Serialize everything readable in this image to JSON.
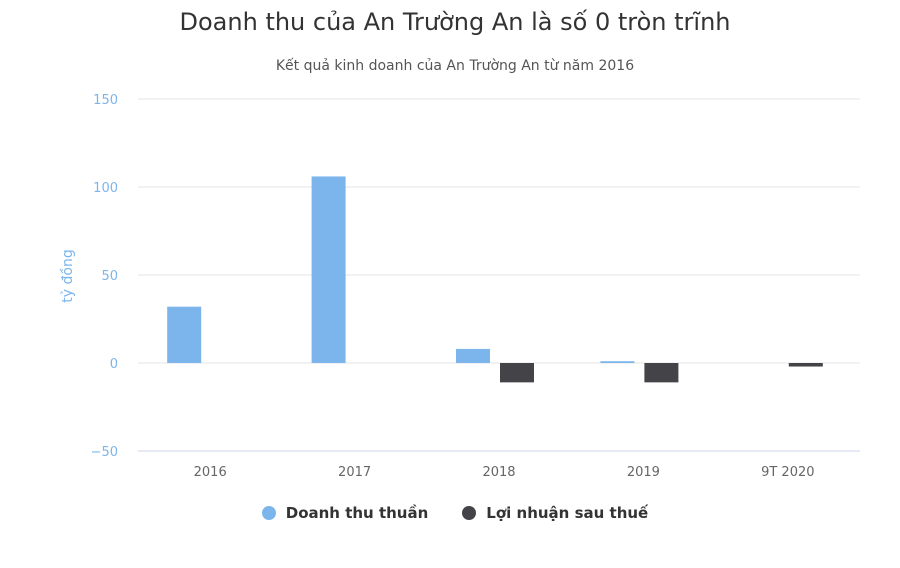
{
  "chart_data": {
    "type": "bar",
    "title": "Doanh thu của An Trường An là số 0 tròn trĩnh",
    "subtitle": "Kết quả kinh doanh của An Trường An từ năm 2016",
    "xlabel": "",
    "ylabel": "tỷ đồng",
    "categories": [
      "2016",
      "2017",
      "2018",
      "2019",
      "9T 2020"
    ],
    "ylim": [
      -50,
      150
    ],
    "yticks": [
      150,
      100,
      50,
      0,
      -50
    ],
    "ytick_labels": [
      "150",
      "100",
      "50",
      "0",
      "−50"
    ],
    "grid": true,
    "legend": "bottom-center",
    "series": [
      {
        "name": "Doanh thu thuần",
        "color": "#7cb5ec",
        "values": [
          32,
          106,
          8,
          1,
          0
        ]
      },
      {
        "name": "Lợi nhuận sau thuế",
        "color": "#434348",
        "values": [
          0,
          0,
          -11,
          -11,
          -2
        ]
      }
    ]
  },
  "colors": {
    "axis_text": "#666666",
    "ylabel": "#7cb5ec",
    "ytick": "#7cb5ec",
    "grid": "#e6e6e6",
    "axis_line": "#ccd6eb"
  }
}
